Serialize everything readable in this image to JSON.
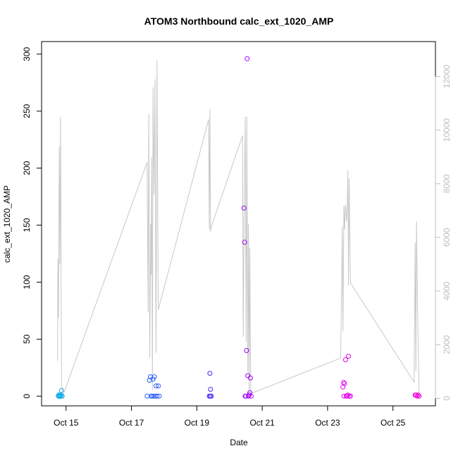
{
  "chart_data": {
    "type": "scatter",
    "title": "ATOM3 Northbound calc_ext_1020_AMP",
    "xlabel": "Date",
    "ylabel": "calc_ext_1020_AMP",
    "xlim_days": [
      14.25,
      26.3
    ],
    "ylim": [
      -8.5,
      311
    ],
    "y_ticks": [
      "0",
      "50",
      "100",
      "150",
      "200",
      "250",
      "300"
    ],
    "x_ticks": [
      {
        "day": 15,
        "label": "Oct 15"
      },
      {
        "day": 17,
        "label": "Oct 17"
      },
      {
        "day": 19,
        "label": "Oct 19"
      },
      {
        "day": 21,
        "label": "Oct 21"
      },
      {
        "day": 23,
        "label": "Oct 23"
      },
      {
        "day": 25,
        "label": "Oct 25"
      }
    ],
    "secondary_axis": {
      "ylim": [
        -280,
        13300
      ],
      "ticks": [
        "0",
        "2000",
        "4000",
        "6000",
        "8000",
        "10000",
        "12000"
      ],
      "color": "#bdbdbd"
    },
    "points": [
      {
        "day": 14.76,
        "y": 0
      },
      {
        "day": 14.78,
        "y": 1
      },
      {
        "day": 14.8,
        "y": 0
      },
      {
        "day": 14.82,
        "y": 1
      },
      {
        "day": 14.84,
        "y": 0
      },
      {
        "day": 14.86,
        "y": 5
      },
      {
        "day": 14.88,
        "y": 0
      },
      {
        "day": 17.48,
        "y": 0
      },
      {
        "day": 17.55,
        "y": 14
      },
      {
        "day": 17.58,
        "y": 17
      },
      {
        "day": 17.6,
        "y": 0
      },
      {
        "day": 17.63,
        "y": 0
      },
      {
        "day": 17.66,
        "y": 15
      },
      {
        "day": 17.68,
        "y": 0
      },
      {
        "day": 17.7,
        "y": 17
      },
      {
        "day": 17.72,
        "y": 0
      },
      {
        "day": 17.75,
        "y": 9
      },
      {
        "day": 17.78,
        "y": 0
      },
      {
        "day": 17.82,
        "y": 9
      },
      {
        "day": 17.85,
        "y": 0
      },
      {
        "day": 19.38,
        "y": 0
      },
      {
        "day": 19.4,
        "y": 20
      },
      {
        "day": 19.41,
        "y": 0
      },
      {
        "day": 19.42,
        "y": 6
      },
      {
        "day": 19.44,
        "y": 0
      },
      {
        "day": 20.44,
        "y": 165
      },
      {
        "day": 20.46,
        "y": 135
      },
      {
        "day": 20.48,
        "y": 0
      },
      {
        "day": 20.5,
        "y": 0
      },
      {
        "day": 20.52,
        "y": 40
      },
      {
        "day": 20.54,
        "y": 296
      },
      {
        "day": 20.56,
        "y": 18
      },
      {
        "day": 20.58,
        "y": 0
      },
      {
        "day": 20.6,
        "y": 1
      },
      {
        "day": 20.62,
        "y": 3
      },
      {
        "day": 20.64,
        "y": 16
      },
      {
        "day": 20.66,
        "y": 0
      },
      {
        "day": 23.47,
        "y": 8
      },
      {
        "day": 23.49,
        "y": 12
      },
      {
        "day": 23.5,
        "y": 0
      },
      {
        "day": 23.52,
        "y": 11
      },
      {
        "day": 23.55,
        "y": 32
      },
      {
        "day": 23.57,
        "y": 0
      },
      {
        "day": 23.6,
        "y": 0
      },
      {
        "day": 23.62,
        "y": 1
      },
      {
        "day": 23.64,
        "y": 35
      },
      {
        "day": 23.66,
        "y": 0
      },
      {
        "day": 23.7,
        "y": 0
      },
      {
        "day": 25.68,
        "y": 1
      },
      {
        "day": 25.71,
        "y": 1
      },
      {
        "day": 25.74,
        "y": 0
      },
      {
        "day": 25.77,
        "y": 1
      },
      {
        "day": 25.8,
        "y": 0
      }
    ],
    "line_series": {
      "name": "secondary (grey line)",
      "color": "#c8c8c8",
      "points": [
        [
          14.74,
          1400
        ],
        [
          14.75,
          5200
        ],
        [
          14.77,
          3000
        ],
        [
          14.79,
          9400
        ],
        [
          14.81,
          5000
        ],
        [
          14.83,
          10500
        ],
        [
          14.86,
          600
        ],
        [
          14.9,
          100
        ],
        [
          17.48,
          8800
        ],
        [
          17.51,
          3200
        ],
        [
          17.53,
          10600
        ],
        [
          17.56,
          1500
        ],
        [
          17.59,
          6500
        ],
        [
          17.6,
          4600
        ],
        [
          17.62,
          9000
        ],
        [
          17.64,
          300
        ],
        [
          17.66,
          11600
        ],
        [
          17.69,
          7600
        ],
        [
          17.72,
          11900
        ],
        [
          17.75,
          1700
        ],
        [
          17.78,
          12600
        ],
        [
          17.82,
          3300
        ],
        [
          19.36,
          10400
        ],
        [
          19.38,
          6300
        ],
        [
          19.4,
          10800
        ],
        [
          19.42,
          6200
        ],
        [
          19.44,
          6400
        ],
        [
          20.4,
          9800
        ],
        [
          20.42,
          2300
        ],
        [
          20.45,
          7200
        ],
        [
          20.48,
          10500
        ],
        [
          20.51,
          2100
        ],
        [
          20.53,
          10500
        ],
        [
          20.56,
          1000
        ],
        [
          20.58,
          6500
        ],
        [
          20.6,
          200
        ],
        [
          20.62,
          5600
        ],
        [
          20.65,
          100
        ],
        [
          20.7,
          200
        ],
        [
          23.4,
          1500
        ],
        [
          23.45,
          6400
        ],
        [
          23.47,
          2500
        ],
        [
          23.5,
          7200
        ],
        [
          23.52,
          6300
        ],
        [
          23.55,
          7200
        ],
        [
          23.58,
          6600
        ],
        [
          23.6,
          7000
        ],
        [
          23.62,
          8500
        ],
        [
          23.64,
          4200
        ],
        [
          23.66,
          8200
        ],
        [
          23.7,
          4300
        ],
        [
          25.65,
          600
        ],
        [
          25.68,
          5800
        ],
        [
          25.7,
          1000
        ],
        [
          25.72,
          6600
        ],
        [
          25.76,
          2800
        ],
        [
          25.8,
          200
        ]
      ]
    }
  }
}
